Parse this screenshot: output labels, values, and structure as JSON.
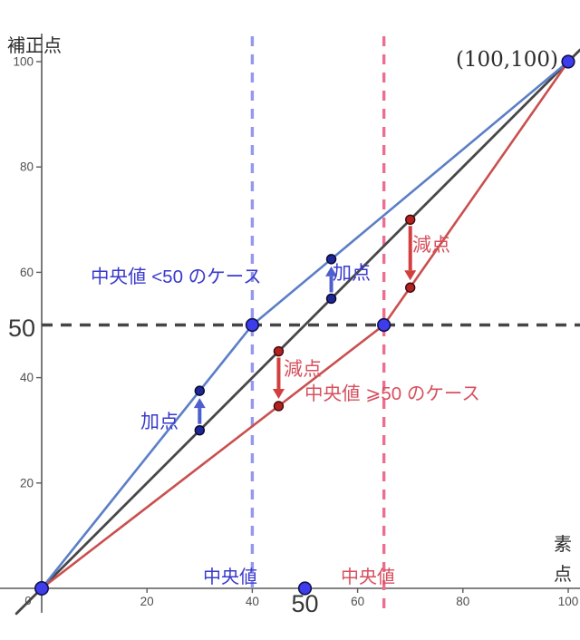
{
  "chart_data": {
    "type": "line",
    "title": "",
    "xlabel": "素点",
    "ylabel": "補正点",
    "xlim": [
      0,
      100
    ],
    "ylim": [
      0,
      100
    ],
    "grid": false,
    "x_ticks": [
      20,
      40,
      60,
      80,
      100
    ],
    "y_ticks": [
      20,
      40,
      60,
      80,
      100
    ],
    "x_origin_label": "0",
    "x_highlight_tick": {
      "value": 50,
      "label": "50"
    },
    "y_highlight_tick": {
      "value": 50,
      "label": "50"
    },
    "axis_color": "#5a5a5a",
    "tick_text_color": "#4f4f4f",
    "highlight_text_color": "#383838",
    "series": [
      {
        "name": "identity-line",
        "color": "#474747",
        "points": [
          [
            0,
            0
          ],
          [
            100,
            100
          ]
        ],
        "extend": true,
        "width": 2.8
      },
      {
        "name": "median-below-50-curve",
        "color": "#5b7fc7",
        "points": [
          [
            0,
            0
          ],
          [
            40,
            50
          ],
          [
            100,
            100
          ]
        ],
        "extend": false,
        "width": 2.6
      },
      {
        "name": "median-above-50-curve",
        "color": "#c9504e",
        "points": [
          [
            0,
            0
          ],
          [
            65,
            50
          ],
          [
            100,
            100
          ]
        ],
        "extend": false,
        "width": 2.6
      }
    ],
    "key_points": {
      "fill": "#3d3deb",
      "stroke": "#11114f",
      "points": [
        [
          0,
          0
        ],
        [
          40,
          50
        ],
        [
          65,
          50
        ],
        [
          100,
          100
        ],
        [
          50,
          0
        ]
      ]
    },
    "corner_point_label": {
      "text": "(100,100)",
      "at": [
        100,
        100
      ],
      "color": "#2b2b2b"
    },
    "guides": {
      "h_dashed": {
        "y": 50,
        "color": "#454545"
      },
      "v_dashed": [
        {
          "name": "median-blue-guide",
          "x": 40,
          "color": "#9599ec",
          "below_axis": false
        },
        {
          "name": "median-pink-guide",
          "x": 65,
          "color": "#ec6f8f",
          "below_axis": true
        }
      ]
    },
    "corrections": [
      {
        "name": "blue-left",
        "x": 30,
        "from_y": 30,
        "to_y": 37.5,
        "dir": "up",
        "arrow_color": "#4d5ecf",
        "dot_fill": "#1e2796",
        "dot_stroke": "#06062e",
        "label": "加点",
        "label_color": "#3a3acd"
      },
      {
        "name": "blue-right",
        "x": 55,
        "from_y": 55,
        "to_y": 62.5,
        "dir": "up",
        "arrow_color": "#4d5ecf",
        "dot_fill": "#1e2796",
        "dot_stroke": "#06062e",
        "label": "加点",
        "label_color": "#3a3acd"
      },
      {
        "name": "red-left",
        "x": 45,
        "from_y": 45,
        "to_y": 34.6,
        "dir": "down",
        "arrow_color": "#d13f3f",
        "dot_fill": "#b22222",
        "dot_stroke": "#3d0a0a",
        "label": "減点",
        "label_color": "#d7505e"
      },
      {
        "name": "red-right",
        "x": 70,
        "from_y": 70,
        "to_y": 57.1,
        "dir": "down",
        "arrow_color": "#d13f3f",
        "dot_fill": "#b22222",
        "dot_stroke": "#3d0a0a",
        "label": "減点",
        "label_color": "#d7505e"
      }
    ],
    "annotations": [
      {
        "name": "case-blue",
        "text": "中央値  <50 のケース",
        "color": "#3a3acd"
      },
      {
        "name": "case-red",
        "text": "中央値 ⩾50 のケース",
        "color": "#d7505e"
      },
      {
        "name": "median-label-blue",
        "text": "中央値",
        "color": "#3a3acd"
      },
      {
        "name": "median-label-red",
        "text": "中央値",
        "color": "#d7505e"
      }
    ]
  }
}
